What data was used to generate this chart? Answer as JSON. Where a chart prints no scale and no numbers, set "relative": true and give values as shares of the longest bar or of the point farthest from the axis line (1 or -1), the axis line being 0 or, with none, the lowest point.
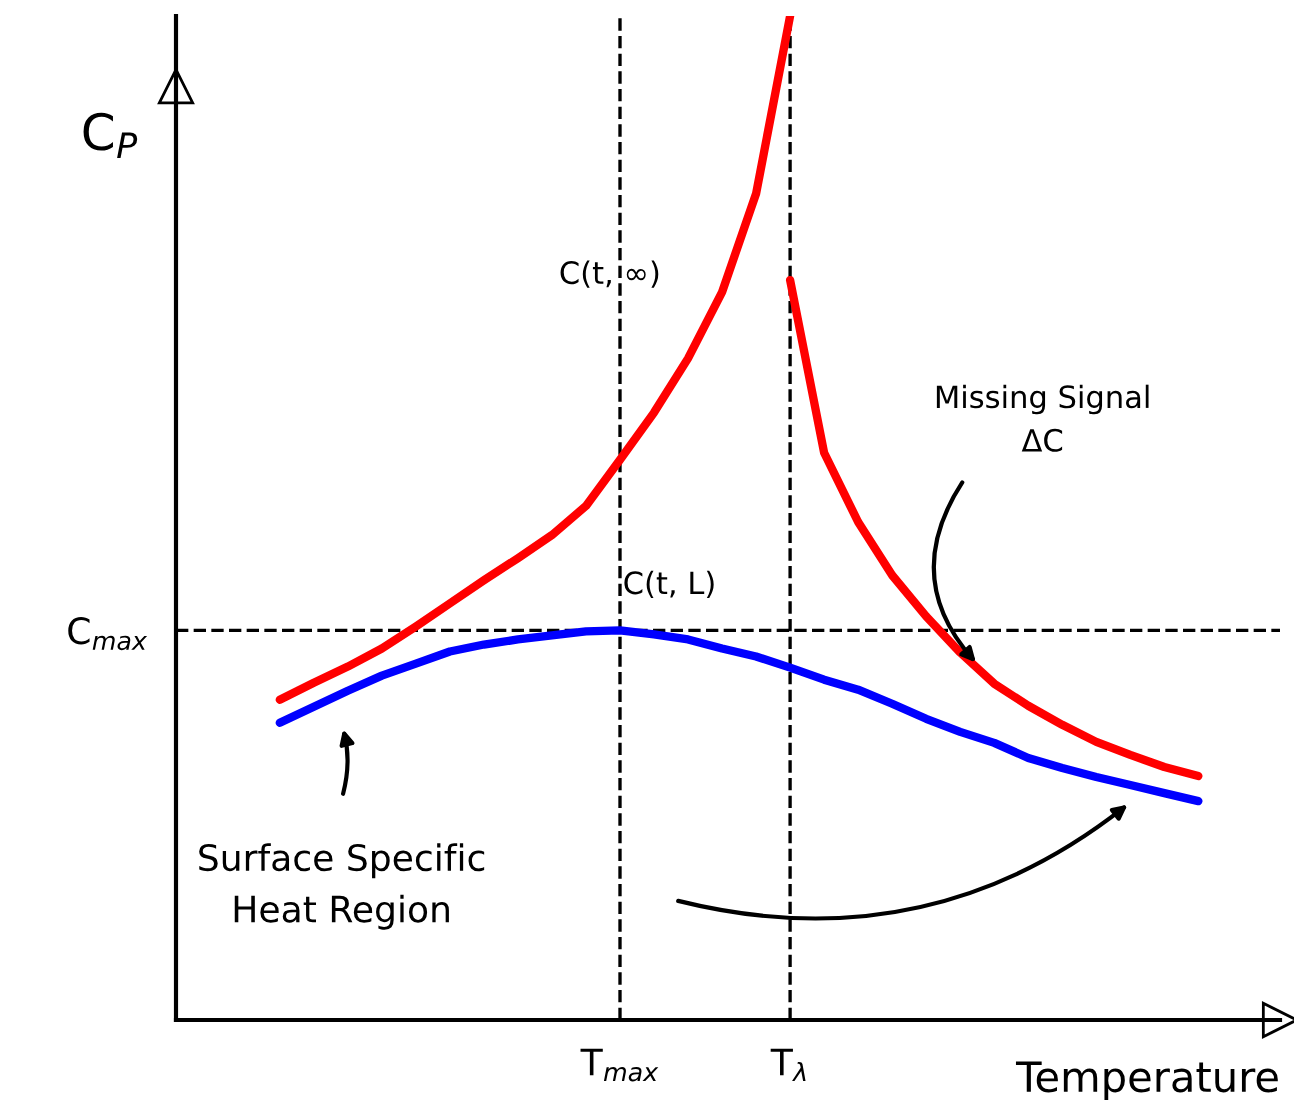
{
  "chart_data": {
    "type": "line",
    "relative": true,
    "xlabel": "Temperature",
    "ylabel": "C$_{P}$",
    "grid": false,
    "legend": false,
    "marker": "none",
    "line_style": "solid",
    "categories": [
      null,
      null,
      null,
      null,
      null,
      null,
      null,
      null,
      null,
      null,
      "T$_{max}$",
      null,
      null,
      null,
      null,
      "T$_{λ}$",
      null,
      null,
      null,
      null,
      null,
      null,
      null,
      null,
      null,
      null,
      null,
      null
    ],
    "series": [
      {
        "color": "#ff0000",
        "values": [
          0.319,
          0.336,
          0.352,
          0.37,
          0.392,
          0.415,
          0.438,
          0.46,
          0.483,
          0.512,
          0.558,
          0.605,
          0.659,
          0.725,
          0.823,
          1,
          null,
          null,
          null,
          null,
          null,
          null,
          null,
          null,
          null,
          null,
          null,
          null
        ]
      },
      {
        "color": "#ff0000",
        "values": [
          null,
          null,
          null,
          null,
          null,
          null,
          null,
          null,
          null,
          null,
          null,
          null,
          null,
          null,
          null,
          0.737,
          0.565,
          0.496,
          0.443,
          0.402,
          0.366,
          0.335,
          0.313,
          0.294,
          0.277,
          0.264,
          0.252,
          0.243
        ]
      },
      {
        "color": "#0000ff",
        "values": [
          0.296,
          0.312,
          0.328,
          0.343,
          0.355,
          0.367,
          0.374,
          0.379,
          0.383,
          0.387,
          0.388,
          0.384,
          0.379,
          0.37,
          0.362,
          0.351,
          0.339,
          0.329,
          0.315,
          0.3,
          0.287,
          0.276,
          0.261,
          0.251,
          0.242,
          0.234,
          0.226,
          0.218
        ]
      }
    ],
    "ref_lines": [
      {
        "axis": "x",
        "value": "T$_{max}$",
        "line_style": "dashed"
      },
      {
        "axis": "x",
        "value": "T$_{λ}$",
        "line_style": "dashed"
      },
      {
        "axis": "y",
        "value": 0.388,
        "label": "C$_{max}$",
        "line_style": "dashed"
      }
    ],
    "annotations": [
      "C(t, ∞)",
      "C(t, L)",
      "Missing Signal\nΔC",
      "Surface Specific\nHeat Region"
    ]
  }
}
